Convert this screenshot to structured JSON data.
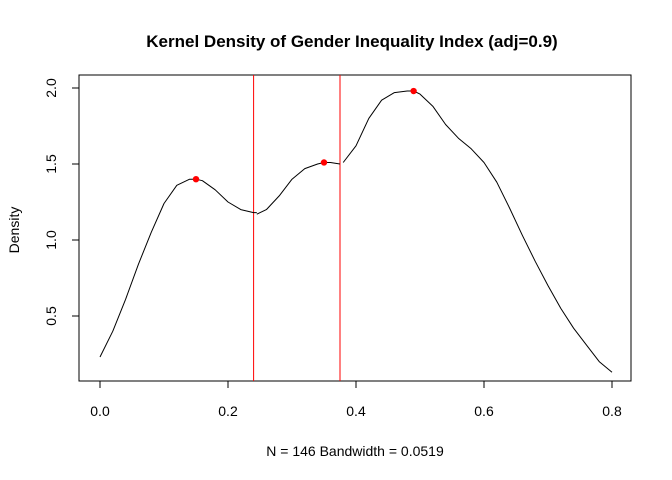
{
  "chart_data": {
    "type": "line",
    "title": "Kernel Density of Gender Inequality Index (adj=0.9)",
    "xlabel": "N = 146   Bandwidth = 0.0519",
    "ylabel": "Density",
    "xlim": [
      0.0,
      0.8
    ],
    "ylim": [
      0.2,
      2.0
    ],
    "x_ticks": [
      "0.0",
      "0.2",
      "0.4",
      "0.6",
      "0.8"
    ],
    "y_ticks": [
      "0.5",
      "1.0",
      "1.5",
      "2.0"
    ],
    "grid": false,
    "series": [
      {
        "color": "#000000",
        "segments": [
          {
            "x": [
              0.0,
              0.02,
              0.04,
              0.06,
              0.08,
              0.1,
              0.12,
              0.14,
              0.15,
              0.16,
              0.18,
              0.2,
              0.22,
              0.24,
              0.245
            ],
            "y": [
              0.23,
              0.4,
              0.61,
              0.84,
              1.05,
              1.24,
              1.36,
              1.4,
              1.4,
              1.39,
              1.33,
              1.25,
              1.2,
              1.18,
              1.18
            ]
          },
          {
            "x": [
              0.245,
              0.26,
              0.28,
              0.3,
              0.32,
              0.34,
              0.35,
              0.36,
              0.375
            ],
            "y": [
              1.17,
              1.2,
              1.29,
              1.4,
              1.47,
              1.5,
              1.51,
              1.51,
              1.5
            ]
          },
          {
            "x": [
              0.38,
              0.4,
              0.42,
              0.44,
              0.46,
              0.48,
              0.49,
              0.5,
              0.52,
              0.54,
              0.56,
              0.58,
              0.6,
              0.62,
              0.64,
              0.66,
              0.68,
              0.7,
              0.72,
              0.74,
              0.76,
              0.78,
              0.8
            ],
            "y": [
              1.51,
              1.62,
              1.8,
              1.92,
              1.97,
              1.98,
              1.98,
              1.96,
              1.88,
              1.76,
              1.67,
              1.6,
              1.51,
              1.38,
              1.21,
              1.03,
              0.86,
              0.7,
              0.55,
              0.42,
              0.31,
              0.2,
              0.13
            ]
          }
        ]
      }
    ],
    "vertical_lines": {
      "color": "#ff0000",
      "x": [
        0.24,
        0.375
      ]
    },
    "peak_points": {
      "color": "#ff0000",
      "x": [
        0.15,
        0.35,
        0.49
      ],
      "y": [
        1.4,
        1.51,
        1.98
      ]
    }
  }
}
